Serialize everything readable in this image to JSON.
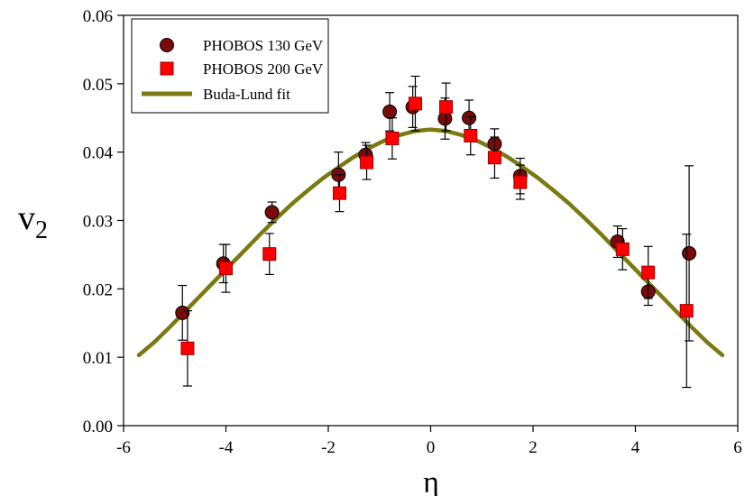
{
  "chart_data": {
    "type": "scatter",
    "xlabel": "η",
    "ylabel_main": "v",
    "ylabel_sub": "2",
    "xlim": [
      -6,
      6
    ],
    "ylim": [
      0.0,
      0.06
    ],
    "xticks": [
      -6,
      -4,
      -2,
      0,
      2,
      4,
      6
    ],
    "xtick_labels": [
      "-6",
      "-4",
      "-2",
      "0",
      "2",
      "4",
      "6"
    ],
    "yticks": [
      0.0,
      0.01,
      0.02,
      0.03,
      0.04,
      0.05,
      0.06
    ],
    "ytick_labels": [
      "0.00",
      "0.01",
      "0.02",
      "0.03",
      "0.04",
      "0.05",
      "0.06"
    ],
    "grid": false,
    "legend_position": "top-left",
    "series": [
      {
        "name": "PHOBOS 130 GeV",
        "marker": "circle",
        "color": "#7a0a0a",
        "points": [
          {
            "x": -4.85,
            "y": 0.0165,
            "err": 0.004
          },
          {
            "x": -4.05,
            "y": 0.0237,
            "err": 0.0028
          },
          {
            "x": -3.1,
            "y": 0.0312,
            "err": 0.0015
          },
          {
            "x": -1.8,
            "y": 0.0367,
            "err": 0.0033
          },
          {
            "x": -1.27,
            "y": 0.0396,
            "err": 0.0018
          },
          {
            "x": -0.8,
            "y": 0.0459,
            "err": 0.0028
          },
          {
            "x": -0.35,
            "y": 0.0466,
            "err": 0.003
          },
          {
            "x": 0.28,
            "y": 0.0449,
            "err": 0.003
          },
          {
            "x": 0.75,
            "y": 0.045,
            "err": 0.0026
          },
          {
            "x": 1.25,
            "y": 0.0412,
            "err": 0.0022
          },
          {
            "x": 1.75,
            "y": 0.0365,
            "err": 0.0026
          },
          {
            "x": 3.65,
            "y": 0.0269,
            "err": 0.0023
          },
          {
            "x": 4.25,
            "y": 0.0196,
            "err": 0.002
          },
          {
            "x": 5.05,
            "y": 0.0252,
            "err": 0.0128
          }
        ]
      },
      {
        "name": "PHOBOS 200 GeV",
        "marker": "square",
        "color": "#ff0000",
        "points": [
          {
            "x": -4.75,
            "y": 0.0113,
            "err": 0.0055
          },
          {
            "x": -4.0,
            "y": 0.023,
            "err": 0.0035
          },
          {
            "x": -3.15,
            "y": 0.0251,
            "err": 0.003
          },
          {
            "x": -1.78,
            "y": 0.034,
            "err": 0.0027
          },
          {
            "x": -1.25,
            "y": 0.0385,
            "err": 0.0025
          },
          {
            "x": -0.75,
            "y": 0.042,
            "err": 0.003
          },
          {
            "x": -0.3,
            "y": 0.0471,
            "err": 0.004
          },
          {
            "x": 0.3,
            "y": 0.0466,
            "err": 0.0035
          },
          {
            "x": 0.78,
            "y": 0.0424,
            "err": 0.0028
          },
          {
            "x": 1.25,
            "y": 0.0392,
            "err": 0.003
          },
          {
            "x": 1.75,
            "y": 0.0356,
            "err": 0.0025
          },
          {
            "x": 3.75,
            "y": 0.0258,
            "err": 0.003
          },
          {
            "x": 4.25,
            "y": 0.0224,
            "err": 0.0038
          },
          {
            "x": 5.0,
            "y": 0.0168,
            "err": 0.0112
          }
        ]
      },
      {
        "name": "Buda-Lund fit",
        "marker": "line",
        "color": "#7b7a12",
        "x": [
          -5.7,
          -5.4,
          -5.1,
          -4.8,
          -4.5,
          -4.2,
          -3.9,
          -3.6,
          -3.3,
          -3.0,
          -2.7,
          -2.4,
          -2.1,
          -1.8,
          -1.5,
          -1.2,
          -0.9,
          -0.6,
          -0.3,
          0.0,
          0.3,
          0.6,
          0.9,
          1.2,
          1.5,
          1.8,
          2.1,
          2.4,
          2.7,
          3.0,
          3.3,
          3.6,
          3.9,
          4.2,
          4.5,
          4.8,
          5.1,
          5.4,
          5.7
        ],
        "y": [
          0.0103,
          0.0122,
          0.0144,
          0.0167,
          0.019,
          0.0213,
          0.0236,
          0.0259,
          0.0282,
          0.0304,
          0.0325,
          0.0344,
          0.0362,
          0.0378,
          0.0393,
          0.0406,
          0.0417,
          0.0425,
          0.0431,
          0.0433,
          0.0431,
          0.0425,
          0.0417,
          0.0406,
          0.0393,
          0.0378,
          0.0362,
          0.0344,
          0.0325,
          0.0304,
          0.0282,
          0.0259,
          0.0236,
          0.0213,
          0.019,
          0.0167,
          0.0144,
          0.0122,
          0.0103
        ]
      }
    ]
  }
}
